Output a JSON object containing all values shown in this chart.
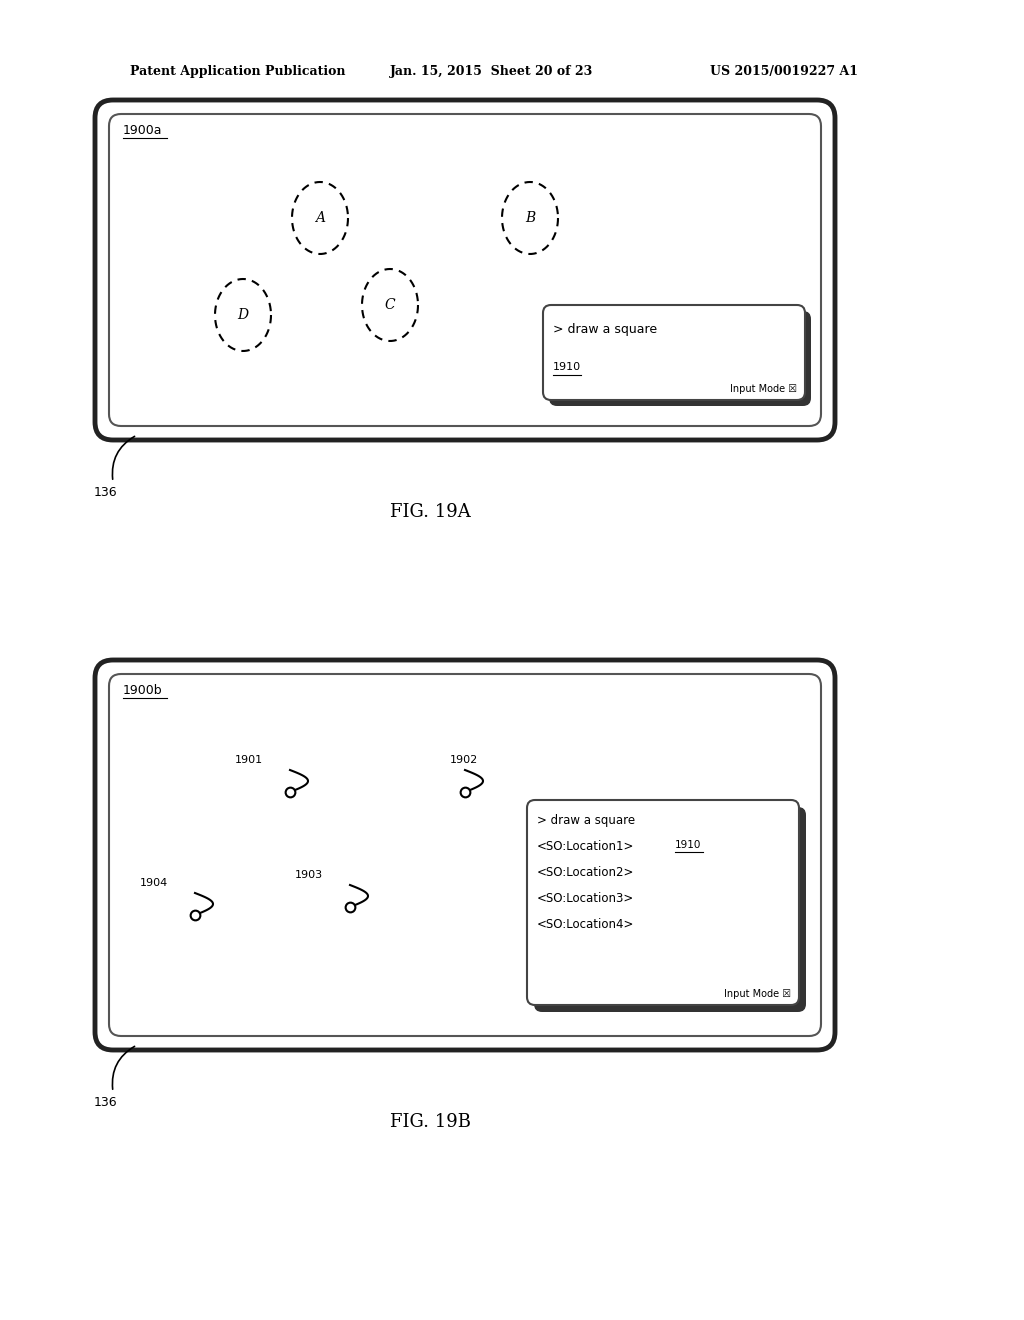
{
  "bg_color": "#ffffff",
  "header_left": "Patent Application Publication",
  "header_mid": "Jan. 15, 2015  Sheet 20 of 23",
  "header_right": "US 2015/0019227 A1",
  "fig_a_label": "FIG. 19A",
  "fig_b_label": "FIG. 19B",
  "fig_a_screen_label": "1900a",
  "fig_b_screen_label": "1900b",
  "device_136": "136",
  "popup_a_text": "> draw a square",
  "popup_a_label": "1910",
  "popup_a_footer": "Input Mode ☒",
  "popup_b_lines": [
    "> draw a square",
    "<SO:Location1>",
    "<SO:Location2>",
    "<SO:Location3>",
    "<SO:Location4>"
  ],
  "popup_b_label": "1910",
  "popup_b_footer": "Input Mode ☒"
}
